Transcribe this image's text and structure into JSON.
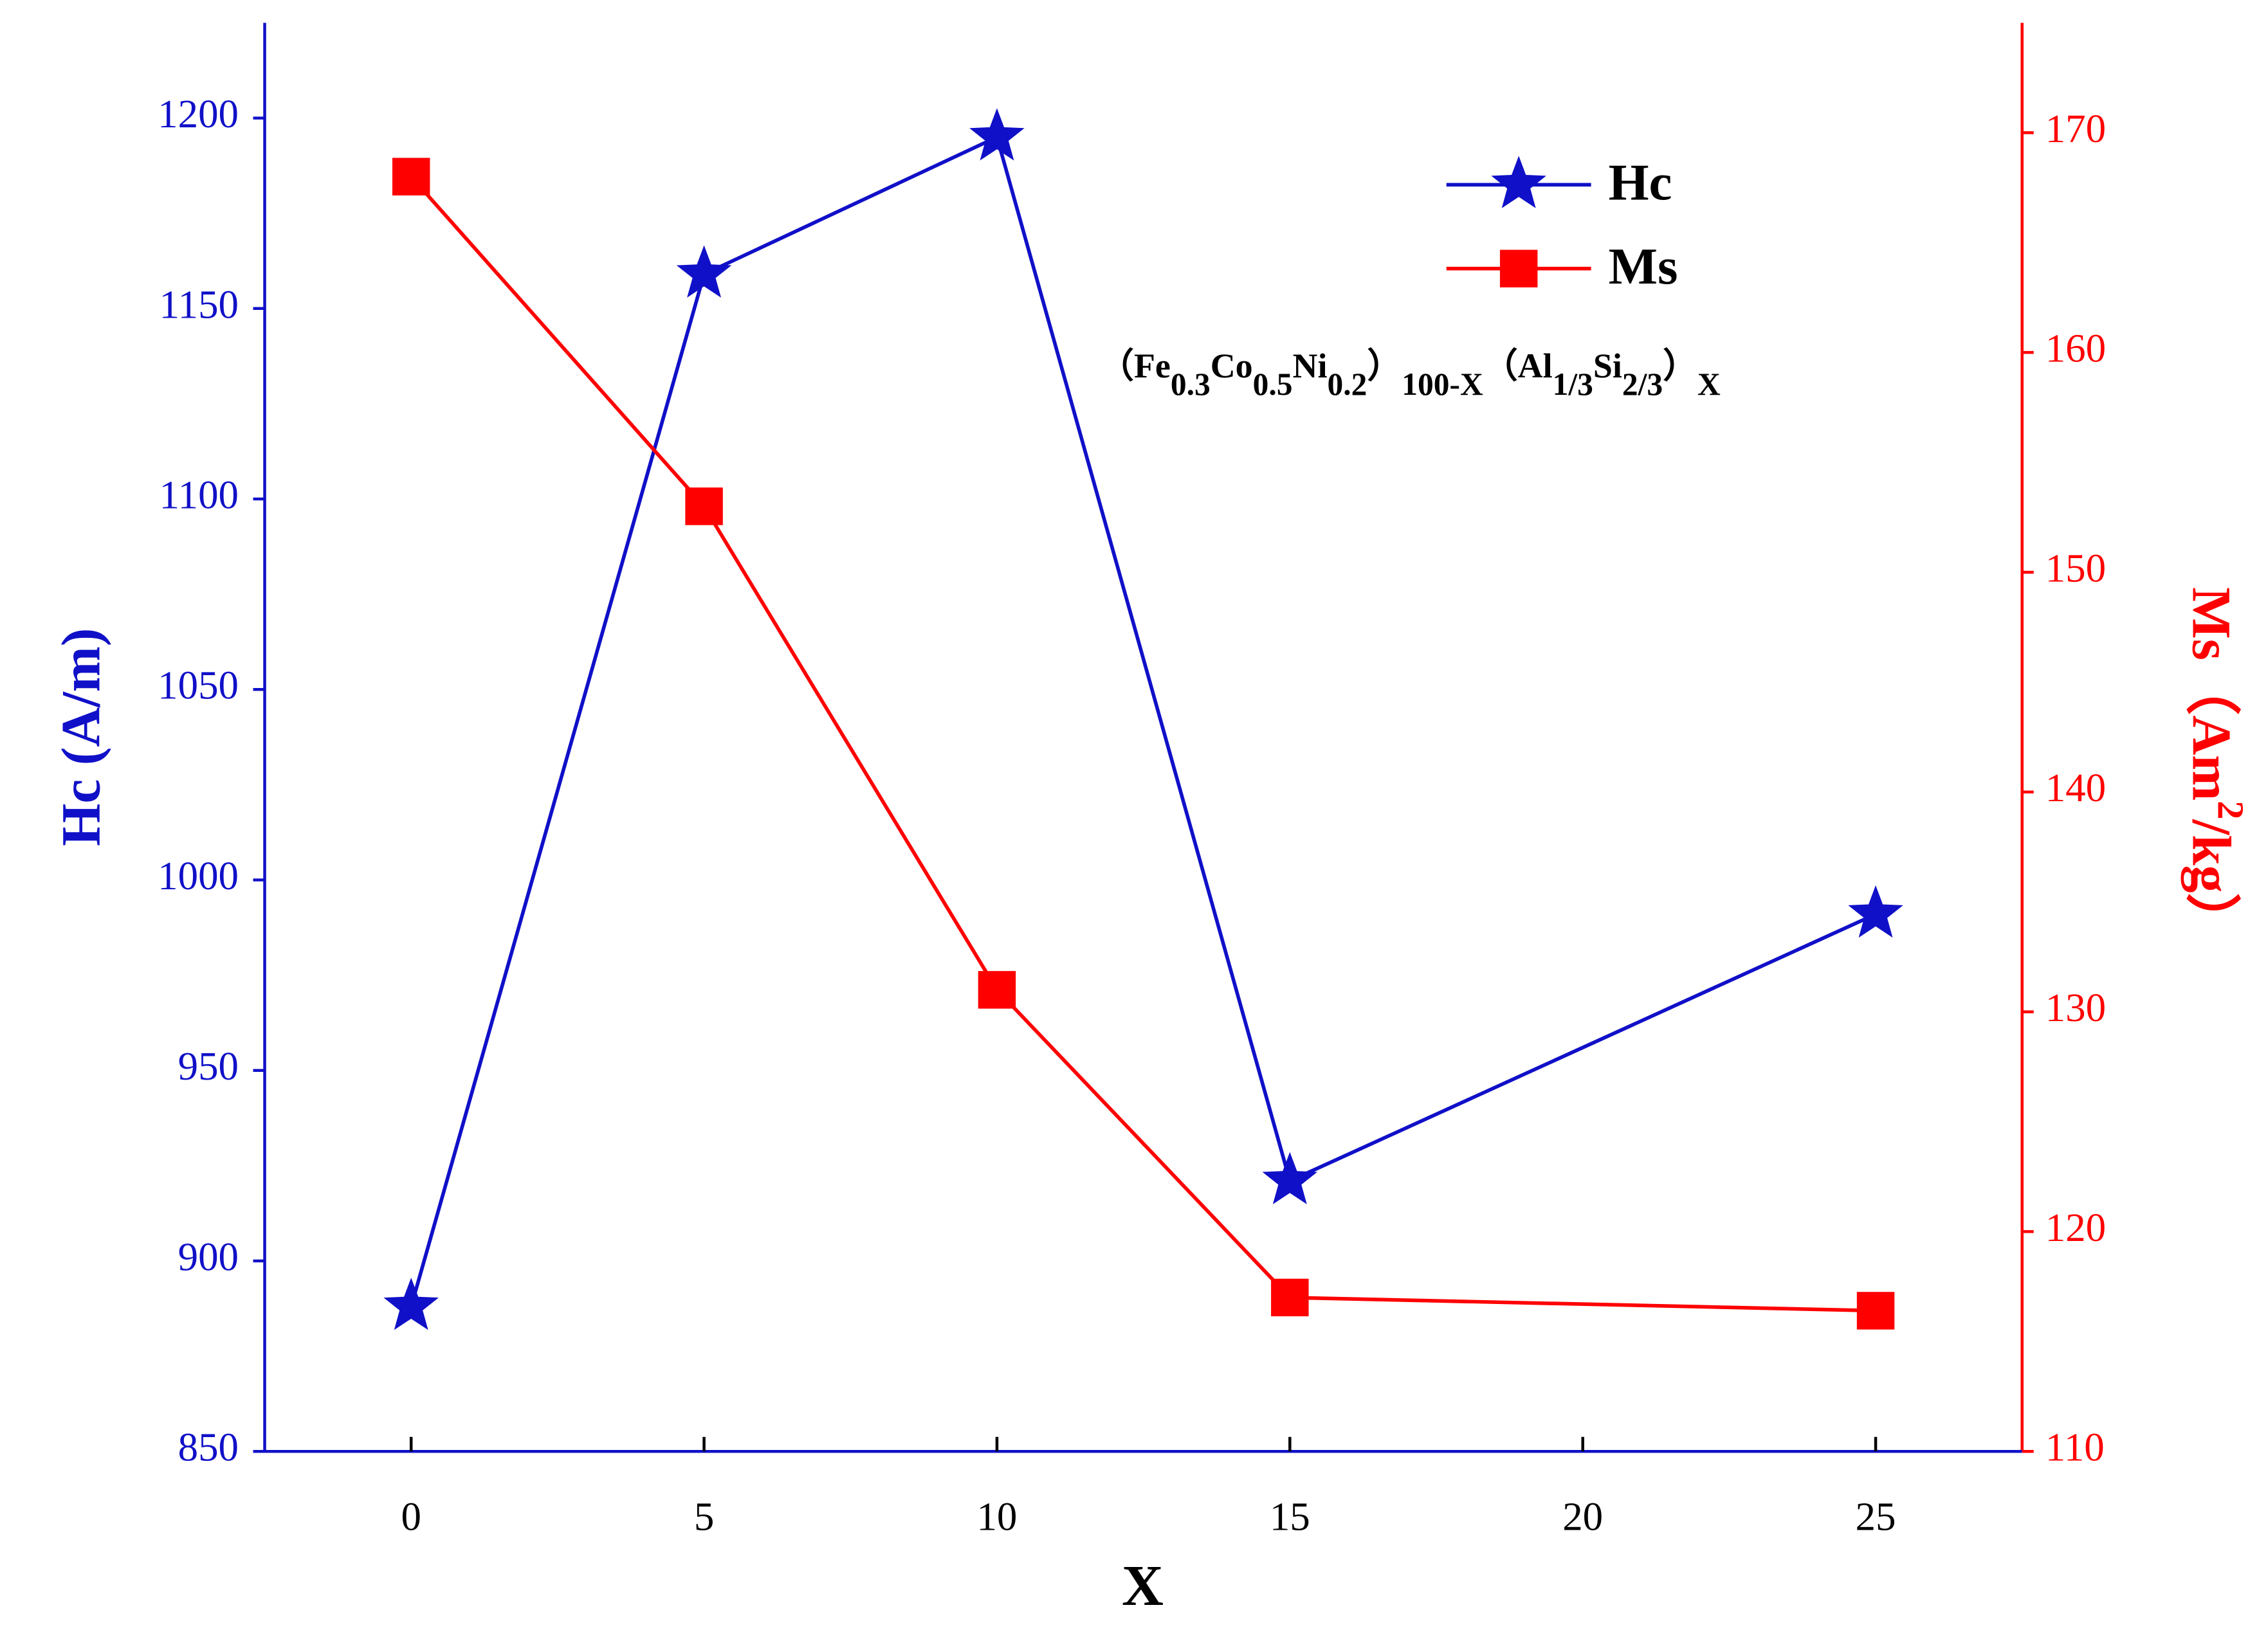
{
  "chart_data": {
    "type": "line",
    "x_label": "X",
    "y_label": "Hc (A/m)",
    "y2_label_parts": [
      "Ms（Am",
      "2",
      "/kg）"
    ],
    "annotation_parts": [
      "（Fe",
      "0.3",
      "Co",
      "0.5",
      "Ni",
      "0.2",
      "）",
      "100-X",
      "（Al",
      "1/3",
      "Si",
      "2/3",
      "）",
      "X"
    ],
    "x": [
      0,
      5,
      10,
      15,
      25
    ],
    "xlim": [
      -2.5,
      27.5
    ],
    "xticks": [
      0,
      5,
      10,
      15,
      20,
      25
    ],
    "ylim": [
      850,
      1225
    ],
    "yticks": [
      850,
      900,
      950,
      1000,
      1050,
      1100,
      1150,
      1200
    ],
    "y2lim": [
      110,
      175
    ],
    "y2ticks": [
      110,
      120,
      130,
      140,
      150,
      160,
      170
    ],
    "legend": "upper right",
    "series": [
      {
        "name": "Hc",
        "color": "#1010c8",
        "marker": "star",
        "values": [
          888,
          1159,
          1195,
          921,
          991
        ]
      },
      {
        "name": "Ms",
        "color": "#ff0000",
        "marker": "square",
        "axis": "y2",
        "values": [
          168,
          153,
          131,
          117,
          116.4
        ]
      }
    ]
  }
}
